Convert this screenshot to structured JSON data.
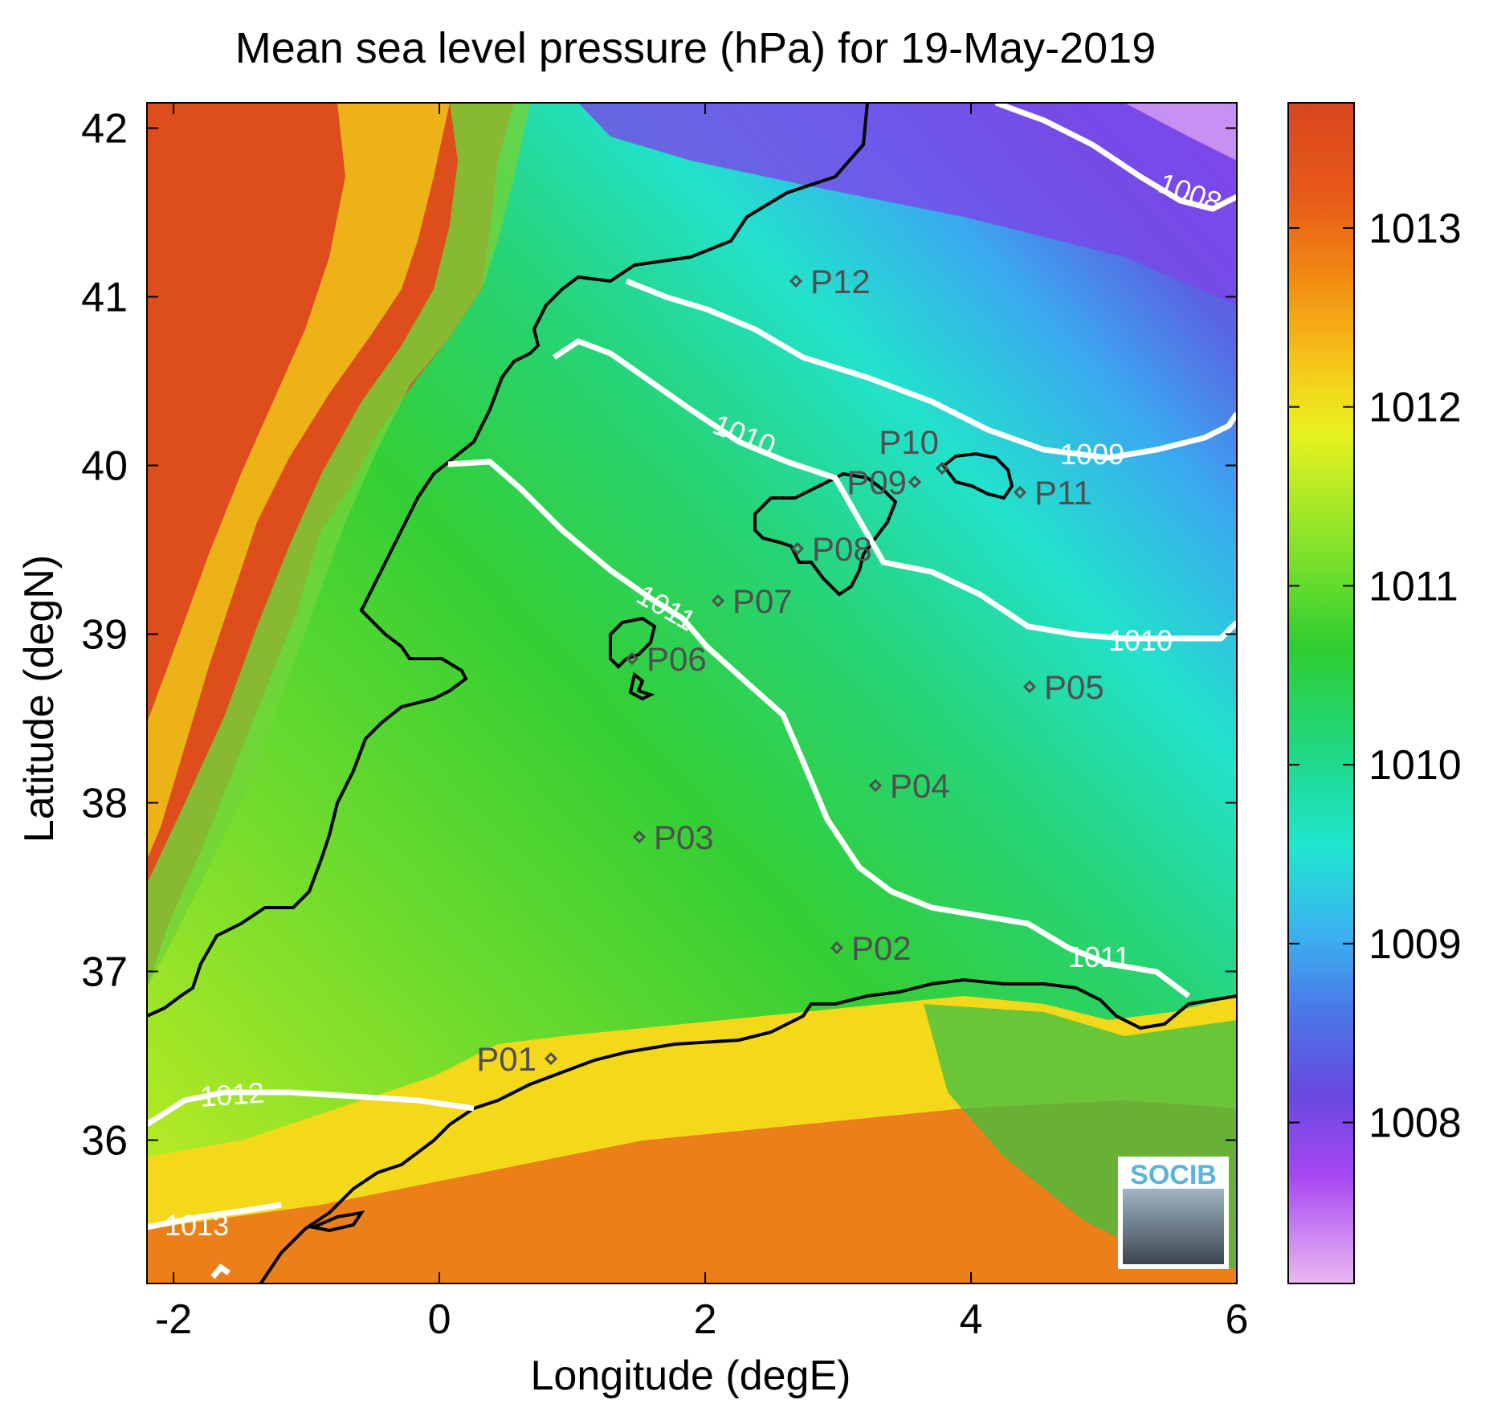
{
  "title": "Mean sea level pressure (hPa) for 19-May-2019",
  "xlabel": "Longitude (degE)",
  "ylabel": "Latitude (degN)",
  "x_ticks": [
    "-2",
    "0",
    "2",
    "4",
    "6"
  ],
  "y_ticks": [
    "42",
    "41",
    "40",
    "39",
    "38",
    "37",
    "36"
  ],
  "colorbar_ticks": [
    "1013",
    "1012",
    "1011",
    "1010",
    "1009",
    "1008"
  ],
  "colorbar_colors": [
    "#e04a1f",
    "#f07a14",
    "#f7c21a",
    "#e6f01e",
    "#92e62a",
    "#2fce2f",
    "#1fd884",
    "#1fe6d0",
    "#38b8f0",
    "#4a78e8",
    "#6848e0",
    "#9a40f0",
    "#c060f8",
    "#e8b0f0"
  ],
  "contour_labels": {
    "c1008": "1008",
    "c1009": "1009",
    "c1010a": "1010",
    "c1010b": "1010",
    "c1011a": "1011",
    "c1011b": "1011",
    "c1012": "1012",
    "c1013": "1013"
  },
  "stations": [
    {
      "id": "P01",
      "label": "P01"
    },
    {
      "id": "P02",
      "label": "P02"
    },
    {
      "id": "P03",
      "label": "P03"
    },
    {
      "id": "P04",
      "label": "P04"
    },
    {
      "id": "P05",
      "label": "P05"
    },
    {
      "id": "P06",
      "label": "P06"
    },
    {
      "id": "P07",
      "label": "P07"
    },
    {
      "id": "P08",
      "label": "P08"
    },
    {
      "id": "P09",
      "label": "P09"
    },
    {
      "id": "P10",
      "label": "P10"
    },
    {
      "id": "P11",
      "label": "P11"
    },
    {
      "id": "P12",
      "label": "P12"
    }
  ],
  "logo": {
    "text": "SOCIB"
  }
}
